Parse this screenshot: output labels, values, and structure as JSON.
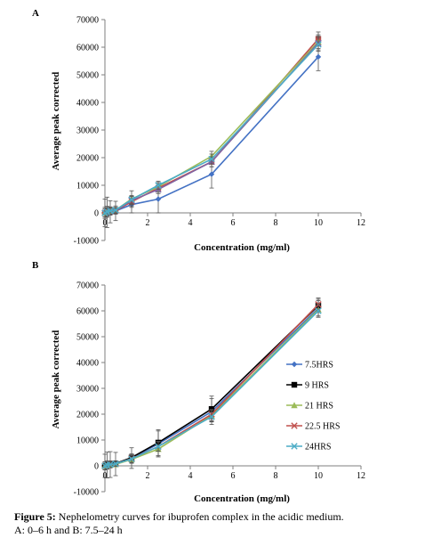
{
  "caption": {
    "lead": "Figure 5:",
    "line1": " Nephelometry curves for ibuprofen complex in the acidic medium.",
    "line2": "A: 0–6 h and B: 7.5–24 h"
  },
  "chart_data": [
    {
      "type": "line",
      "panel_label": "A",
      "title": "",
      "xlabel": "Concentration (mg/ml)",
      "ylabel": "Average peak corrected",
      "xlim": [
        0,
        12
      ],
      "ylim": [
        -10000,
        70000
      ],
      "xticks": [
        "0",
        "2",
        "4",
        "6",
        "8",
        "10",
        "12"
      ],
      "yticks": [
        "-10000",
        "0",
        "10000",
        "20000",
        "30000",
        "40000",
        "50000",
        "60000",
        "70000"
      ],
      "grid": false,
      "legend": "none",
      "x": [
        0.0,
        0.1,
        0.25,
        0.5,
        1.25,
        2.5,
        5,
        10
      ],
      "series": [
        {
          "name": "",
          "color": "#4472c4",
          "marker": "diamond",
          "values": [
            0,
            200,
            400,
            700,
            3000,
            5000,
            14000,
            56500
          ],
          "errors": [
            5000,
            5500,
            4000,
            3500,
            3000,
            5000,
            5000,
            5000
          ]
        },
        {
          "name": "",
          "color": "#c0504d",
          "marker": "square",
          "values": [
            0,
            300,
            500,
            800,
            4000,
            9000,
            18500,
            63000
          ],
          "errors": [
            1500,
            1500,
            1200,
            1000,
            1500,
            1500,
            1800,
            2500
          ]
        },
        {
          "name": "",
          "color": "#9bbb59",
          "marker": "triangle",
          "values": [
            0,
            400,
            700,
            1000,
            5000,
            9500,
            20500,
            62000
          ],
          "errors": [
            2000,
            2000,
            1500,
            1500,
            3000,
            1500,
            1800,
            2500
          ]
        },
        {
          "name": "",
          "color": "#8064a2",
          "marker": "x",
          "values": [
            0,
            300,
            600,
            900,
            4500,
            8500,
            18500,
            61500
          ],
          "errors": [
            1500,
            1500,
            1200,
            1000,
            1500,
            1500,
            1800,
            2500
          ]
        },
        {
          "name": "",
          "color": "#4bacc6",
          "marker": "x",
          "values": [
            0,
            400,
            700,
            1000,
            4800,
            10000,
            19500,
            61000
          ],
          "errors": [
            1500,
            1500,
            1200,
            1000,
            1500,
            1500,
            1800,
            2500
          ]
        }
      ]
    },
    {
      "type": "line",
      "panel_label": "B",
      "title": "",
      "xlabel": "Concentration (mg/ml)",
      "ylabel": "Average peak corrected",
      "xlim": [
        0,
        12
      ],
      "ylim": [
        -10000,
        70000
      ],
      "xticks": [
        "0",
        "2",
        "4",
        "6",
        "8",
        "10",
        "12"
      ],
      "yticks": [
        "-10000",
        "0",
        "10000",
        "20000",
        "30000",
        "40000",
        "50000",
        "60000",
        "70000"
      ],
      "grid": false,
      "legend": "right",
      "x": [
        0.0,
        0.1,
        0.25,
        0.5,
        1.25,
        2.5,
        5,
        10
      ],
      "series": [
        {
          "name": "7.5HRS",
          "color": "#4472c4",
          "marker": "diamond",
          "values": [
            0,
            300,
            500,
            700,
            3000,
            8500,
            21000,
            61000
          ],
          "errors": [
            4500,
            5000,
            5000,
            4500,
            4000,
            5000,
            5000,
            3000
          ]
        },
        {
          "name": "9 HRS",
          "color": "#000000",
          "marker": "square",
          "values": [
            0,
            400,
            700,
            900,
            3200,
            9000,
            22000,
            62000
          ],
          "errors": [
            1500,
            1500,
            1200,
            1000,
            1500,
            5000,
            5000,
            2500
          ]
        },
        {
          "name": "21 HRS",
          "color": "#9bbb59",
          "marker": "triangle",
          "values": [
            0,
            200,
            400,
            600,
            2500,
            6500,
            19500,
            60500
          ],
          "errors": [
            1500,
            1500,
            1200,
            1000,
            1500,
            3000,
            2000,
            2500
          ]
        },
        {
          "name": "22.5 HRS",
          "color": "#c0504d",
          "marker": "x",
          "values": [
            0,
            300,
            600,
            800,
            2800,
            7500,
            20000,
            62500
          ],
          "errors": [
            1500,
            1500,
            1200,
            1000,
            1500,
            1800,
            1800,
            2500
          ]
        },
        {
          "name": "24HRS",
          "color": "#4bacc6",
          "marker": "x",
          "values": [
            0,
            300,
            500,
            800,
            2700,
            7500,
            19000,
            60000
          ],
          "errors": [
            1500,
            1500,
            1200,
            1000,
            1500,
            1800,
            1800,
            2500
          ]
        }
      ]
    }
  ]
}
